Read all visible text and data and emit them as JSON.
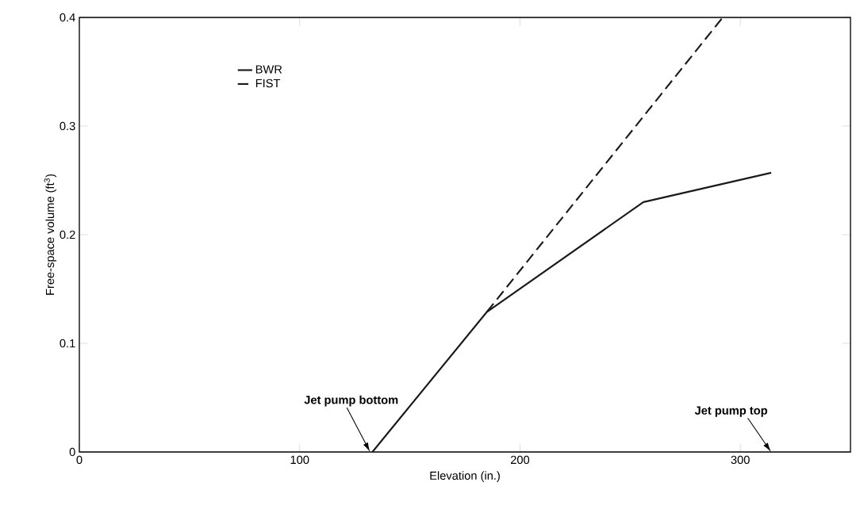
{
  "chart_data": {
    "type": "line",
    "xlabel": "Elevation (in.)",
    "ylabel": "Free-space volume (ft$^{3}$)",
    "xlim": [
      0,
      350
    ],
    "ylim": [
      0,
      0.4
    ],
    "xticks": [
      0,
      100,
      200,
      300
    ],
    "yticks": [
      0,
      0.1,
      0.2,
      0.3,
      0.4
    ],
    "grid": false,
    "legend": "top left",
    "marker": "none",
    "series": [
      {
        "name": "BWR",
        "color": "#1a1a1a",
        "line_style": "solid",
        "x": [
          133,
          185,
          256,
          314
        ],
        "values": [
          0,
          0.129,
          0.23,
          0.257
        ]
      },
      {
        "name": "FIST",
        "color": "#1a1a1a",
        "line_style": "dashed",
        "x": [
          185,
          292
        ],
        "values": [
          0.129,
          0.4
        ]
      }
    ],
    "annotations": [
      "Jet pump bottom",
      "Jet pump top"
    ]
  }
}
